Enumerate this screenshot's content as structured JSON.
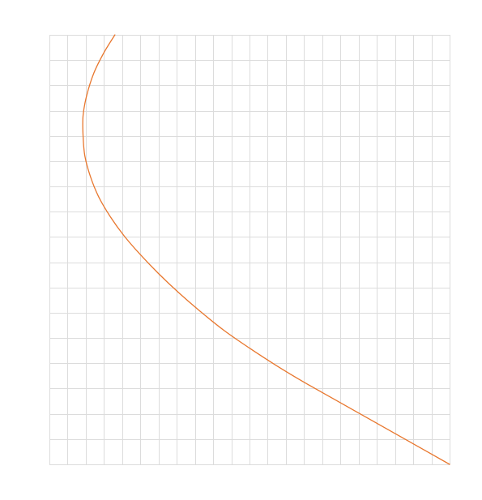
{
  "chart_data": {
    "type": "line",
    "title": "",
    "xlabel": "",
    "ylabel": "",
    "xlim": [
      0,
      22
    ],
    "ylim": [
      0,
      17
    ],
    "grid": true,
    "x_grid_step": 1,
    "y_grid_step": 1,
    "series": [
      {
        "color": "#e8772e",
        "x": [
          3.6,
          3.0,
          2.45,
          2.05,
          1.85,
          1.85,
          1.95,
          2.25,
          2.7,
          3.35,
          4.1,
          5.0,
          6.0,
          7.1,
          8.3,
          9.6,
          11.0,
          12.5,
          14.0,
          15.6,
          17.2,
          18.8,
          20.4,
          22.0
        ],
        "y": [
          17.0,
          16.3,
          15.5,
          14.6,
          13.8,
          13.0,
          12.2,
          11.4,
          10.6,
          9.8,
          9.05,
          8.3,
          7.55,
          6.8,
          6.05,
          5.3,
          4.6,
          3.9,
          3.25,
          2.6,
          1.95,
          1.3,
          0.65,
          0.0
        ]
      }
    ]
  }
}
